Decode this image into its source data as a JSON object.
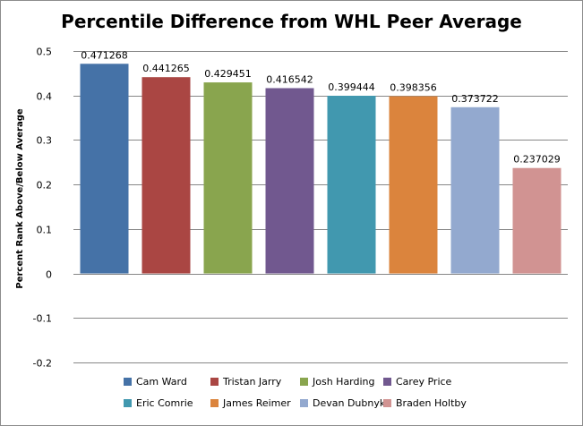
{
  "chart_data": {
    "type": "bar",
    "title": "Percentile Difference from WHL Peer Average",
    "ylabel": "Percent Rank Above/Below Average",
    "xlabel": "",
    "ylim": [
      -0.2,
      0.5
    ],
    "yticks": [
      "-0.2",
      "-0.1",
      "0",
      "0.1",
      "0.2",
      "0.3",
      "0.4",
      "0.5"
    ],
    "ytick_values": [
      -0.2,
      -0.1,
      0,
      0.1,
      0.2,
      0.3,
      0.4,
      0.5
    ],
    "grid": true,
    "legend_position": "bottom",
    "series": [
      {
        "name": "Cam Ward",
        "value": 0.471268,
        "label": "0.471268",
        "color": "#4572A7"
      },
      {
        "name": "Tristan Jarry",
        "value": 0.441265,
        "label": "0.441265",
        "color": "#AA4643"
      },
      {
        "name": "Josh Harding",
        "value": 0.429451,
        "label": "0.429451",
        "color": "#89A54E"
      },
      {
        "name": "Carey Price",
        "value": 0.416542,
        "label": "0.416542",
        "color": "#71588F"
      },
      {
        "name": "Eric Comrie",
        "value": 0.399444,
        "label": "0.399444",
        "color": "#4198AF"
      },
      {
        "name": "James Reimer",
        "value": 0.398356,
        "label": "0.398356",
        "color": "#DB843D"
      },
      {
        "name": "Devan Dubnyk",
        "value": 0.373722,
        "label": "0.373722",
        "color": "#93A9CF"
      },
      {
        "name": "Braden Holtby",
        "value": 0.237029,
        "label": "0.237029",
        "color": "#D19392"
      }
    ]
  }
}
